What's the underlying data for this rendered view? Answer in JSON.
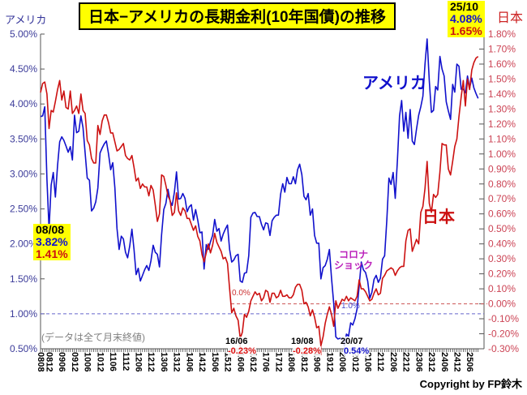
{
  "title": "日本−アメリカの長期金利(10年国債)の推移",
  "footnote": "(データは全て月末終値)",
  "copyright": "Copyright by FP鈴木",
  "left_axis_title": "アメリカ",
  "right_axis_title": "日本",
  "annotations": {
    "start": {
      "date": "08/08",
      "us": "3.82%",
      "jp": "1.41%"
    },
    "latest": {
      "date": "25/10",
      "us": "4.08%",
      "jp": "1.65%"
    },
    "us_series_label": "アメリカ",
    "jp_series_label": "日本",
    "corona_line1": "コロナ",
    "corona_line2": "ショック",
    "zero_ref_label": "0.0%",
    "one_ref_label": "1.0%",
    "jp_low1": {
      "date": "16/06",
      "value": "-0.23%"
    },
    "jp_low2": {
      "date": "19/08",
      "value": "-0.28%"
    },
    "us_low": {
      "date": "20/07",
      "value": "0.54%"
    }
  },
  "colors": {
    "us_line": "#1111CC",
    "jp_line": "#CC1111",
    "left_ticks": "#3B3B99",
    "right_ticks": "#CC4455",
    "axis": "#555555",
    "highlight": "#FFFF00",
    "corona": "#BB22BB"
  },
  "chart_data": {
    "type": "line",
    "title": "日本−アメリカの長期金利(10年国債)の推移",
    "x_interval": "monthly",
    "x_start": "2008-08",
    "x_end": "2025-10",
    "x_tick_labels": [
      "0808",
      "0812",
      "0906",
      "0912",
      "1006",
      "1012",
      "1106",
      "1112",
      "1206",
      "1212",
      "1306",
      "1312",
      "1406",
      "1412",
      "1506",
      "1512",
      "1606",
      "1612",
      "1706",
      "1712",
      "1806",
      "1812",
      "1906",
      "1912",
      "2006",
      "2012",
      "2106",
      "2112",
      "2206",
      "2212",
      "2306",
      "2312",
      "2406",
      "2412",
      "2506"
    ],
    "left_axis": {
      "label": "アメリカ",
      "min": 0.5,
      "max": 5.0,
      "step": 0.5,
      "tick_labels": [
        "5.00%",
        "4.50%",
        "4.00%",
        "3.50%",
        "3.00%",
        "2.50%",
        "2.00%",
        "1.50%",
        "1.00%",
        "0.50%"
      ]
    },
    "right_axis": {
      "label": "日本",
      "min": -0.3,
      "max": 1.8,
      "step": 0.1,
      "tick_labels": [
        "1.80%",
        "1.70%",
        "1.60%",
        "1.50%",
        "1.40%",
        "1.30%",
        "1.20%",
        "1.10%",
        "1.00%",
        "0.90%",
        "0.80%",
        "0.70%",
        "0.60%",
        "0.50%",
        "0.40%",
        "0.30%",
        "0.20%",
        "0.10%",
        "0.00%",
        "-0.10%",
        "-0.20%",
        "-0.30%"
      ]
    },
    "ref_lines": [
      {
        "axis": "left",
        "value": 1.0,
        "label": "1.0%",
        "color": "#6666CC",
        "style": "dashed"
      },
      {
        "axis": "right",
        "value": 0.0,
        "label": "0.0%",
        "color": "#CC5555",
        "style": "dashed"
      }
    ],
    "series": [
      {
        "name": "アメリカ",
        "axis": "left",
        "color": "#1111CC",
        "values": [
          3.82,
          3.83,
          3.96,
          2.92,
          2.21,
          2.84,
          3.02,
          2.67,
          3.12,
          3.46,
          3.53,
          3.48,
          3.4,
          3.31,
          3.39,
          3.2,
          3.84,
          3.59,
          3.61,
          3.83,
          3.66,
          3.3,
          2.94,
          2.91,
          2.47,
          2.51,
          2.6,
          2.8,
          3.3,
          3.37,
          3.43,
          3.47,
          3.29,
          3.06,
          3.16,
          2.8,
          2.22,
          1.92,
          2.11,
          2.07,
          1.88,
          1.8,
          1.97,
          2.21,
          1.92,
          1.56,
          1.65,
          1.47,
          1.55,
          1.63,
          1.69,
          1.62,
          1.76,
          1.98,
          1.88,
          1.85,
          1.67,
          2.13,
          2.49,
          2.58,
          2.78,
          2.61,
          2.55,
          2.74,
          3.03,
          2.64,
          2.65,
          2.72,
          2.65,
          2.46,
          2.53,
          2.56,
          2.34,
          2.49,
          2.34,
          2.16,
          2.17,
          1.64,
          1.99,
          1.92,
          2.03,
          2.12,
          2.35,
          2.18,
          2.22,
          2.04,
          2.14,
          2.21,
          2.27,
          1.92,
          1.74,
          1.77,
          1.83,
          1.85,
          1.47,
          1.45,
          1.58,
          1.59,
          1.83,
          2.38,
          2.44,
          2.45,
          2.39,
          2.39,
          2.28,
          2.2,
          2.3,
          2.29,
          2.12,
          2.33,
          2.38,
          2.41,
          2.41,
          2.71,
          2.86,
          2.74,
          2.95,
          2.86,
          2.86,
          2.96,
          2.86,
          3.06,
          3.14,
          2.99,
          2.68,
          2.63,
          2.72,
          2.41,
          2.5,
          2.12,
          2.01,
          2.01,
          1.5,
          1.66,
          1.69,
          1.78,
          1.92,
          1.51,
          1.15,
          0.67,
          0.64,
          0.65,
          0.66,
          0.54,
          0.71,
          0.68,
          0.87,
          0.84,
          0.93,
          1.07,
          1.4,
          1.74,
          1.63,
          1.59,
          1.47,
          1.22,
          1.31,
          1.49,
          1.55,
          1.45,
          1.51,
          1.78,
          1.83,
          2.34,
          2.94,
          2.85,
          3.02,
          2.65,
          3.2,
          3.83,
          4.05,
          3.61,
          3.88,
          3.51,
          3.92,
          3.47,
          3.42,
          3.64,
          3.84,
          3.96,
          4.11,
          4.57,
          4.93,
          4.33,
          3.88,
          3.91,
          4.25,
          4.2,
          4.68,
          4.5,
          4.4,
          4.03,
          3.9,
          3.78,
          4.28,
          4.17,
          4.57,
          4.54,
          4.21,
          4.21,
          4.16,
          4.4,
          4.23,
          4.37,
          4.23,
          4.15,
          4.08
        ]
      },
      {
        "name": "日本",
        "axis": "right",
        "color": "#CC1111",
        "values": [
          1.41,
          1.47,
          1.48,
          1.4,
          1.17,
          1.29,
          1.28,
          1.35,
          1.43,
          1.49,
          1.36,
          1.42,
          1.31,
          1.3,
          1.42,
          1.27,
          1.29,
          1.32,
          1.27,
          1.4,
          1.29,
          1.27,
          1.09,
          1.06,
          0.97,
          0.94,
          0.94,
          1.19,
          1.13,
          1.22,
          1.26,
          1.26,
          1.21,
          1.14,
          1.14,
          1.08,
          1.02,
          1.03,
          1.05,
          1.07,
          0.99,
          0.97,
          0.96,
          0.99,
          0.91,
          0.82,
          0.84,
          0.77,
          0.8,
          0.78,
          0.78,
          0.72,
          0.79,
          0.76,
          0.66,
          0.55,
          0.6,
          0.86,
          0.85,
          0.79,
          0.72,
          0.69,
          0.59,
          0.61,
          0.74,
          0.62,
          0.59,
          0.64,
          0.62,
          0.57,
          0.57,
          0.53,
          0.49,
          0.52,
          0.45,
          0.42,
          0.33,
          0.28,
          0.34,
          0.4,
          0.34,
          0.39,
          0.47,
          0.41,
          0.38,
          0.35,
          0.3,
          0.31,
          0.27,
          0.1,
          -0.06,
          -0.03,
          -0.08,
          -0.11,
          -0.23,
          -0.19,
          -0.07,
          -0.09,
          -0.05,
          0.02,
          0.05,
          0.08,
          0.06,
          0.07,
          0.02,
          0.04,
          0.09,
          0.08,
          0.01,
          0.07,
          0.07,
          0.04,
          0.05,
          0.09,
          0.05,
          0.05,
          0.06,
          0.04,
          0.04,
          0.06,
          0.11,
          0.13,
          0.13,
          0.09,
          0.0,
          0.01,
          -0.02,
          -0.08,
          -0.04,
          -0.09,
          -0.16,
          -0.15,
          -0.28,
          -0.22,
          -0.13,
          -0.07,
          -0.02,
          -0.07,
          -0.15,
          0.02,
          -0.03,
          0.0,
          0.03,
          0.02,
          0.05,
          0.02,
          0.04,
          0.03,
          0.02,
          0.05,
          0.16,
          0.1,
          0.1,
          0.08,
          0.05,
          0.02,
          0.03,
          0.07,
          0.1,
          0.06,
          0.07,
          0.17,
          0.19,
          0.22,
          0.23,
          0.24,
          0.23,
          0.19,
          0.22,
          0.24,
          0.25,
          0.25,
          0.42,
          0.49,
          0.5,
          0.35,
          0.39,
          0.43,
          0.4,
          0.61,
          0.65,
          0.77,
          0.95,
          0.67,
          0.61,
          0.73,
          0.71,
          0.73,
          0.88,
          1.07,
          1.06,
          1.06,
          0.9,
          0.86,
          0.95,
          1.05,
          1.1,
          1.25,
          1.38,
          1.49,
          1.32,
          1.5,
          1.43,
          1.56,
          1.61,
          1.64,
          1.65
        ]
      }
    ],
    "annotated_points": [
      {
        "date": "2008-08",
        "us": 3.82,
        "jp": 1.41
      },
      {
        "date": "2016-06",
        "jp": -0.23
      },
      {
        "date": "2019-08",
        "jp": -0.28
      },
      {
        "date": "2020-07",
        "us": 0.54
      },
      {
        "date": "2025-10",
        "us": 4.08,
        "jp": 1.65
      }
    ]
  }
}
